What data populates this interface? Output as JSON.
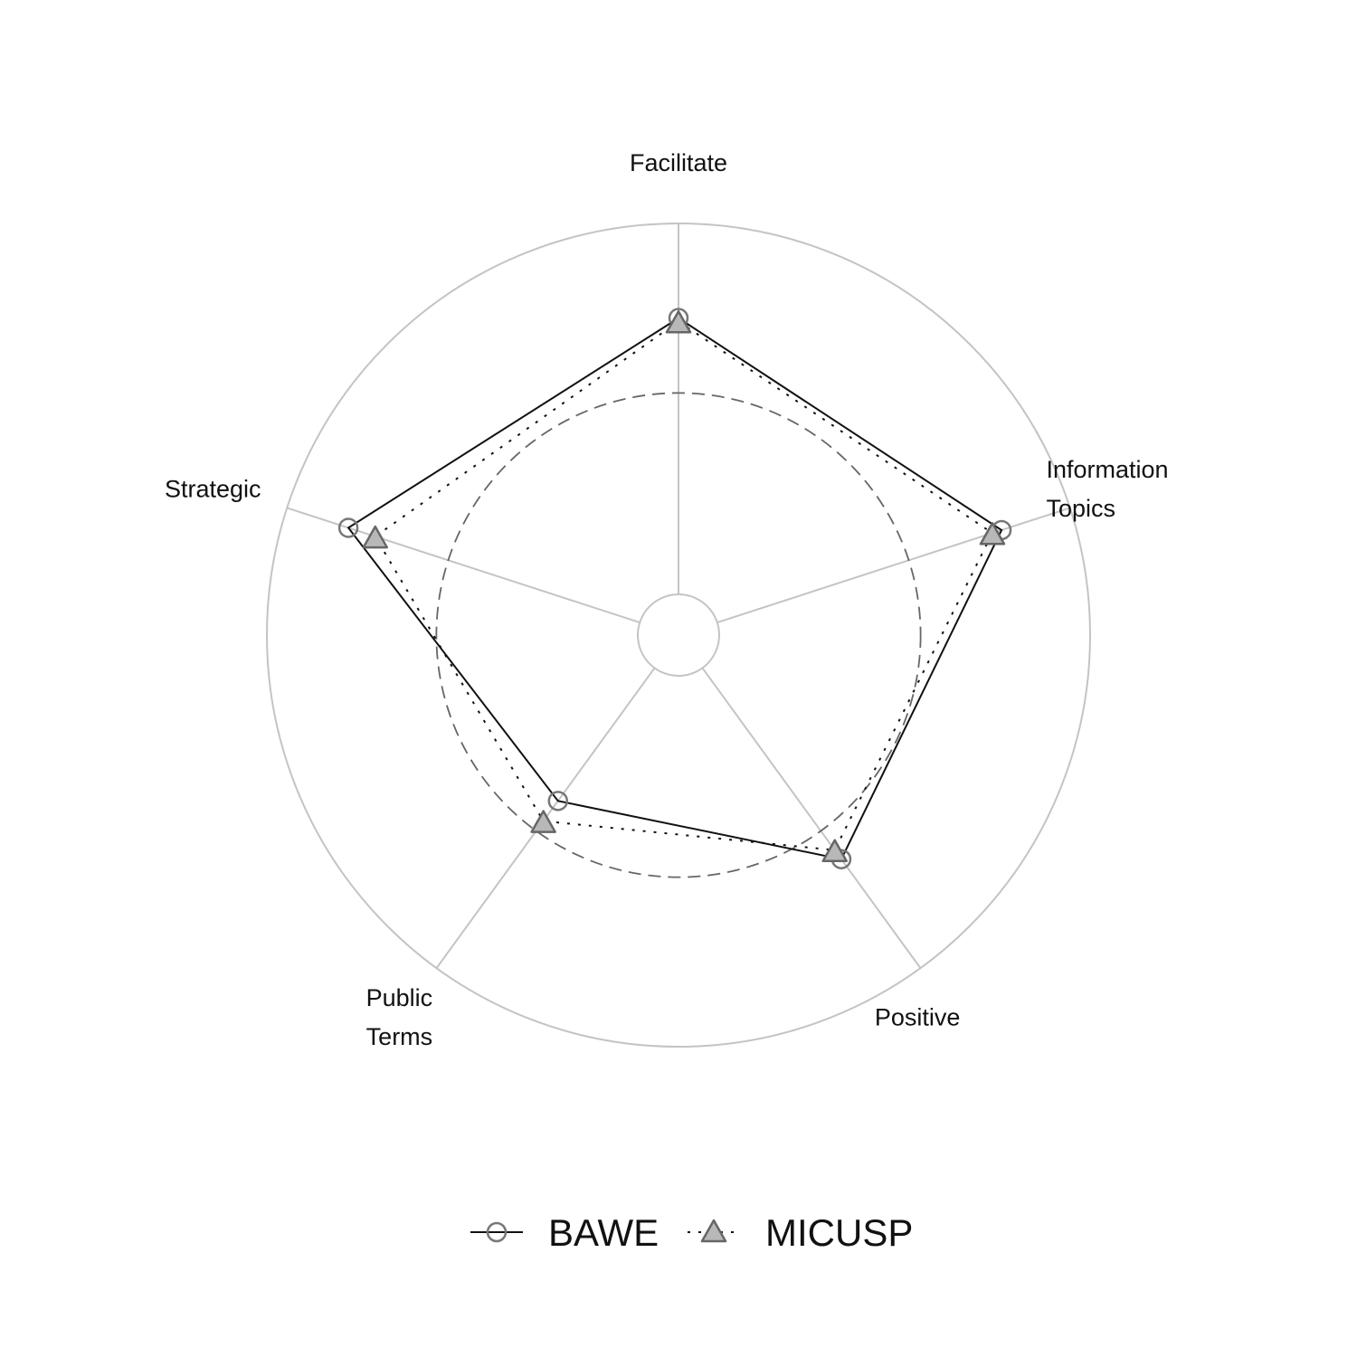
{
  "chart_data": {
    "type": "radar",
    "axes": [
      {
        "lines": [
          "Facilitate"
        ]
      },
      {
        "lines": [
          "Information",
          "Topics"
        ]
      },
      {
        "lines": [
          "Positive"
        ]
      },
      {
        "lines": [
          "Public",
          "Terms"
        ]
      },
      {
        "lines": [
          "Strategic"
        ]
      }
    ],
    "series": [
      {
        "name": "BAWE",
        "values": [
          0.745,
          0.806,
          0.637,
          0.443,
          0.826
        ],
        "line": "solid",
        "marker": "circle",
        "line_color": "#111111",
        "marker_stroke": "#777777",
        "marker_fill": "none"
      },
      {
        "name": "MICUSP",
        "values": [
          0.736,
          0.78,
          0.607,
          0.51,
          0.75
        ],
        "line": "dotted",
        "marker": "triangle",
        "line_color": "#111111",
        "marker_stroke": "#666666",
        "marker_fill": "#b8b8b8"
      }
    ],
    "rlim": [
      0,
      1
    ],
    "reference_circle": 0.543,
    "grid": "on",
    "legend_position": "bottom",
    "colors": {
      "grid": "#c4c4c4",
      "reference": "#666666"
    }
  }
}
